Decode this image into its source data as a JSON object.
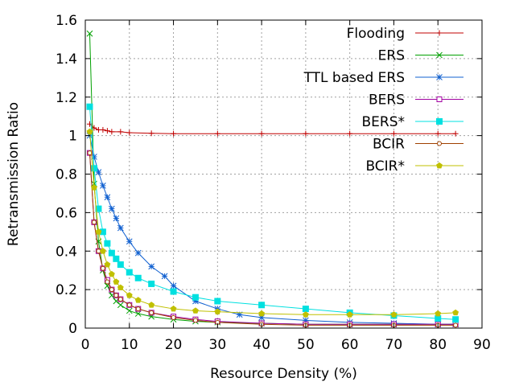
{
  "chart_data": {
    "type": "line",
    "title": "",
    "xlabel": "Resource Density (%)",
    "ylabel": "Retransmission Ratio",
    "xlim": [
      0,
      90
    ],
    "ylim": [
      0,
      1.6
    ],
    "xticks": [
      0,
      10,
      20,
      30,
      40,
      50,
      60,
      70,
      80,
      90
    ],
    "yticks": [
      0,
      0.2,
      0.4,
      0.6,
      0.8,
      1,
      1.2,
      1.4,
      1.6
    ],
    "grid": true,
    "legend_position": "top-right",
    "series": [
      {
        "name": "Flooding",
        "color": "#c00000",
        "marker": "plus",
        "x": [
          1,
          2,
          3,
          4,
          5,
          6,
          8,
          10,
          15,
          20,
          30,
          40,
          50,
          60,
          70,
          80,
          84
        ],
        "y": [
          1.06,
          1.04,
          1.03,
          1.03,
          1.025,
          1.02,
          1.02,
          1.015,
          1.012,
          1.01,
          1.01,
          1.01,
          1.01,
          1.01,
          1.01,
          1.01,
          1.01
        ]
      },
      {
        "name": "ERS",
        "color": "#00a000",
        "marker": "x",
        "x": [
          1,
          2,
          3,
          4,
          5,
          6,
          7,
          8,
          10,
          12,
          15,
          20,
          25,
          30,
          40,
          50,
          60,
          70,
          80,
          84
        ],
        "y": [
          1.53,
          0.75,
          0.45,
          0.3,
          0.22,
          0.17,
          0.14,
          0.12,
          0.09,
          0.075,
          0.06,
          0.045,
          0.035,
          0.03,
          0.025,
          0.02,
          0.02,
          0.02,
          0.02,
          0.02
        ]
      },
      {
        "name": "TTL based ERS",
        "color": "#1060d0",
        "marker": "star",
        "x": [
          1,
          2,
          3,
          4,
          5,
          6,
          7,
          8,
          10,
          12,
          15,
          18,
          20,
          25,
          30,
          35,
          40,
          50,
          60,
          70,
          80,
          84
        ],
        "y": [
          1.0,
          0.89,
          0.81,
          0.74,
          0.68,
          0.62,
          0.57,
          0.52,
          0.45,
          0.39,
          0.32,
          0.27,
          0.22,
          0.14,
          0.1,
          0.07,
          0.055,
          0.04,
          0.03,
          0.025,
          0.02,
          0.02
        ]
      },
      {
        "name": "BERS",
        "color": "#a000a0",
        "marker": "square-open",
        "x": [
          1,
          2,
          3,
          4,
          5,
          6,
          7,
          8,
          10,
          12,
          15,
          20,
          25,
          30,
          40,
          50,
          60,
          70,
          80,
          84
        ],
        "y": [
          0.91,
          0.55,
          0.4,
          0.31,
          0.25,
          0.2,
          0.17,
          0.15,
          0.12,
          0.1,
          0.08,
          0.06,
          0.045,
          0.035,
          0.025,
          0.02,
          0.02,
          0.02,
          0.02,
          0.02
        ]
      },
      {
        "name": "BERS*",
        "color": "#00e0e0",
        "marker": "square-filled",
        "x": [
          1,
          2,
          3,
          4,
          5,
          6,
          7,
          8,
          10,
          12,
          15,
          20,
          25,
          30,
          40,
          50,
          60,
          70,
          80,
          84
        ],
        "y": [
          1.15,
          0.83,
          0.62,
          0.5,
          0.44,
          0.39,
          0.36,
          0.33,
          0.29,
          0.26,
          0.23,
          0.19,
          0.16,
          0.14,
          0.12,
          0.1,
          0.08,
          0.065,
          0.05,
          0.045
        ]
      },
      {
        "name": "BCIR",
        "color": "#a04000",
        "marker": "circle-open",
        "x": [
          1,
          2,
          3,
          4,
          5,
          6,
          7,
          8,
          10,
          12,
          15,
          20,
          25,
          30,
          40,
          50,
          60,
          70,
          80,
          84
        ],
        "y": [
          0.91,
          0.55,
          0.4,
          0.31,
          0.24,
          0.2,
          0.17,
          0.15,
          0.12,
          0.1,
          0.08,
          0.055,
          0.04,
          0.03,
          0.02,
          0.015,
          0.015,
          0.015,
          0.015,
          0.015
        ]
      },
      {
        "name": "BCIR*",
        "color": "#c0c000",
        "marker": "pentagon-filled",
        "x": [
          1,
          2,
          3,
          4,
          5,
          6,
          7,
          8,
          10,
          12,
          15,
          20,
          25,
          30,
          40,
          50,
          60,
          70,
          80,
          84
        ],
        "y": [
          1.02,
          0.73,
          0.5,
          0.4,
          0.33,
          0.28,
          0.24,
          0.21,
          0.17,
          0.145,
          0.12,
          0.1,
          0.09,
          0.085,
          0.075,
          0.07,
          0.07,
          0.07,
          0.075,
          0.08
        ]
      }
    ]
  }
}
